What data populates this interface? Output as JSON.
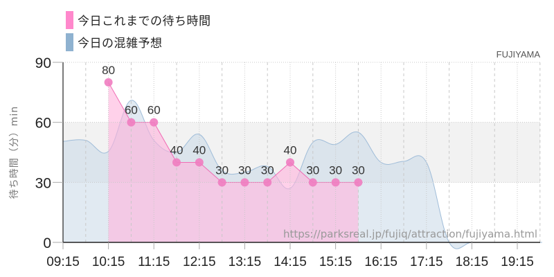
{
  "legend": {
    "items": [
      {
        "label": "今日これまでの待ち時間",
        "color": "#ff88cc"
      },
      {
        "label": "今日の混雑予想",
        "color": "#8fb2d0"
      }
    ]
  },
  "attraction_name": "FUJIYAMA",
  "watermark": "https://parksreal.jp/fujiq/attraction/fujiyama.html",
  "colors": {
    "actual_line": "#f06cb4",
    "actual_fill": "#ffb3dc",
    "actual_point": "#f07cc0",
    "forecast_line": "#9fbcd8",
    "forecast_fill": "#c8d8e8",
    "band": "#f2f2f2",
    "grid": "#c8c8c8",
    "axis": "#222222"
  },
  "chart_data": {
    "type": "area",
    "title": "",
    "xlabel": "",
    "ylabel": "待ち時間（分）min",
    "ylim": [
      0,
      90
    ],
    "yticks": [
      0,
      30,
      60,
      90
    ],
    "xticks": [
      "09:15",
      "10:15",
      "11:15",
      "12:15",
      "13:15",
      "14:15",
      "15:15",
      "16:15",
      "17:15",
      "18:15",
      "19:15"
    ],
    "grid": true,
    "highlight_band": [
      30,
      60
    ],
    "legend_position": "top-left",
    "x": [
      "09:15",
      "09:45",
      "10:15",
      "10:45",
      "11:15",
      "11:45",
      "12:15",
      "12:45",
      "13:15",
      "13:45",
      "14:15",
      "14:45",
      "15:15",
      "15:45",
      "16:15",
      "16:45",
      "17:15",
      "17:45",
      "18:15",
      "18:45",
      "19:15",
      "19:45"
    ],
    "series": [
      {
        "name": "今日これまでの待ち時間",
        "type": "area-points",
        "x": [
          "10:15",
          "10:45",
          "11:15",
          "11:45",
          "12:15",
          "12:45",
          "13:15",
          "13:45",
          "14:15",
          "14:45",
          "15:15",
          "15:45"
        ],
        "values": [
          80,
          60,
          60,
          40,
          40,
          30,
          30,
          30,
          40,
          30,
          30,
          30
        ],
        "labels": [
          "80",
          "60",
          "60",
          "40",
          "40",
          "30",
          "30",
          "30",
          "40",
          "30",
          "30",
          "30"
        ]
      },
      {
        "name": "今日の混雑予想",
        "type": "smooth-area",
        "x": [
          "09:15",
          "09:45",
          "10:15",
          "10:45",
          "11:15",
          "11:45",
          "12:15",
          "12:45",
          "13:15",
          "13:45",
          "14:15",
          "14:45",
          "15:15",
          "15:45",
          "16:15",
          "16:45",
          "17:15",
          "17:45",
          "18:15",
          "18:45",
          "19:15",
          "19:45"
        ],
        "values": [
          50.5,
          51,
          45.5,
          71,
          51,
          45,
          54,
          36,
          35,
          38,
          27,
          50,
          49,
          55,
          40,
          40.5,
          40,
          0,
          0,
          0,
          0,
          0
        ]
      }
    ]
  }
}
